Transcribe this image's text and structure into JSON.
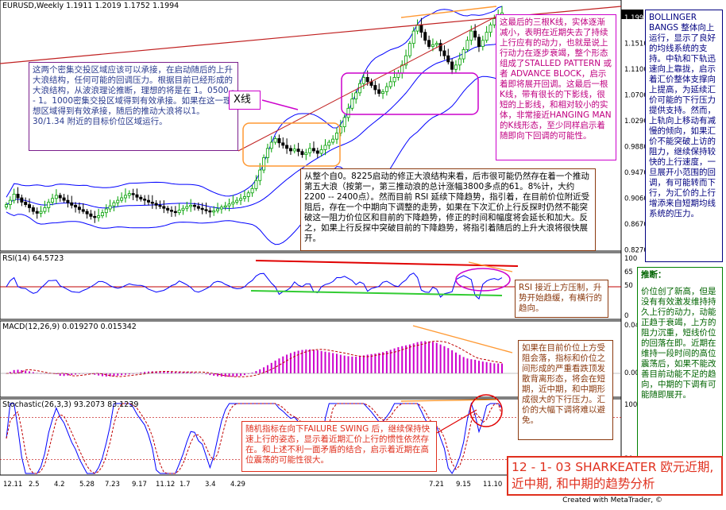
{
  "header": {
    "symbol_line": "EURUSD,Weekly  1.1911 1.2019 1.1752 1.1994",
    "rsi_line": "RSI(14) 64.5723",
    "macd_line": "MACD(12,26,9)  0.019270 0.015342",
    "stoch_line": "Stochastic(26,3,3) 93.2073 83.1239"
  },
  "price_axis": [
    "1.1994",
    "1.1510",
    "1.1100",
    "1.0700",
    "1.0290",
    "0.9880",
    "0.9470",
    "0.9060",
    "0.8670",
    "0.8270"
  ],
  "rsi_axis": [
    "100",
    "65",
    "50",
    "0"
  ],
  "macd_axis": [
    "0.0424",
    "0.00"
  ],
  "stoch_axis": [
    "100",
    "20",
    "0"
  ],
  "date_axis": [
    "12.11",
    "2.5",
    "4.2",
    "5.28",
    "7.23",
    "9.17",
    "11.12",
    "1.7",
    "3.4",
    "4.29",
    "7.21",
    "9.15",
    "11.10"
  ],
  "footer": "Created with MetaTrader, ©",
  "title": "12 - 1- 03  SHARKEATER 欧元近期, 近中期, 和中期的趋势分析",
  "x_line_label": "X线",
  "colors": {
    "up": "#00a000",
    "down": "#000000",
    "accent": "#e0301e",
    "purple": "#cc00cc",
    "orange": "#ff9933",
    "navy": "#000080",
    "green": "#008000",
    "brown": "#8b3a0f",
    "band": "#0000ff"
  },
  "notes": {
    "support_zone": "这两个密集交投区域应该可以承接，在启动随后的上升大浪结构，任何可能的回调压力。根据目前已经形成的大浪结构，从波浪理论推断，理想的将是在 1。0500 -- 1。1000密集交投区域得到有效承接。如果在这一理想区域得到有效承接，随后的推动大浪将以1。30/1.34 附近的目标价位区域运行。",
    "three_candles": "这最后的三根K线，实体逐渐减小，表明在近期失去了持续上行应有的动力，也就是说上行动力在逐步衰竭，整个形态组成了STALLED PATTERN 或者 ADVANCE BLOCK，启示着即将展开回调。这最后一根K线，带有很长的下影线，很短的上影线，和相对较小的实体，非常接近HANGING MAN 的K线形态，至少同样启示着随即向下回调的可能性。",
    "bollinger": "BOLLINGER BANGS 整体向上运行，显示了良好的均线系统的支持。中轨和下轨迅速向上靠拢，启示着汇价整体支撑向上提高，为延续汇价可能的下行压力提供支持。然而，上轨向上移动有减慢的倾向，如果汇价不能突破上访的阻力，继续保持较快的上行速度，一旦展开小范围的回调，有可能转而下行，为汇价的上行增添来自短期均线系统的压力。",
    "wave": "从整个自0。8225启动的修正大浪结构来看，后市很可能仍然存在着一个推动第五大浪（按第一，第三推动浪的总计涨幅3800多点的61。8%计，大约2200 -- 2400点）。然而目前 RSI 延续下降趋势，指引着，在目前价位附近受阻后，存在一个中期向下调整的走势，如果在下次汇价上行反探时仍然不能突破这一阻力价位区和目前的下降趋势，修正的时间和幅度将会延长和加大。反之，如果上行反探中突破目前的下降趋势，将指引着随后的上升大浪将很快展开。",
    "rsi": "RSI 接近上方压制，升势开始趋缓，有横行的趋向。",
    "macd": "如果在目前价位上方受阻会落，指标和价位之间形成的严重看跌顶发散背离形态，将会在短期，近中期，和中期形成很大的下行压力。汇价的大幅下调将难以避免。",
    "stochastic": "随机指标在向下FAILURE SWING 后，继续保持快速上行的姿态，显示着近期汇价上行的惯性依然存在。和上述不利一面矛盾的结合，启示着近期在高位震荡的可能性很大。",
    "conclusion_title": "推断：",
    "conclusion": "价位创了新高，但是没有有效激发维持持久上行的动力，动能正趋于衰竭，上方的阻力沉重，短线价位的回落在即。近期在维持一段时间的高位震荡后，如果不能改善目前动能不足的趋向，中期的下调有可能随即展开。"
  },
  "chart_data": {
    "type": "candlestick",
    "title": "EURUSD,Weekly",
    "price_range": [
      0.819,
      1.21
    ],
    "dates": [
      "12.11",
      "2.5",
      "4.2",
      "5.28",
      "7.23",
      "9.17",
      "11.12",
      "1.7",
      "3.4",
      "4.29",
      "7.21",
      "9.15",
      "11.10"
    ],
    "last_ohlc": {
      "open": 1.1911,
      "high": 1.2019,
      "low": 1.1752,
      "close": 1.1994
    },
    "close_path": [
      0.889,
      0.896,
      0.906,
      0.9,
      0.893,
      0.889,
      0.884,
      0.878,
      0.875,
      0.878,
      0.884,
      0.893,
      0.899,
      0.904,
      0.9,
      0.896,
      0.892,
      0.888,
      0.885,
      0.881,
      0.878,
      0.874,
      0.87,
      0.868,
      0.871,
      0.876,
      0.882,
      0.887,
      0.892,
      0.896,
      0.9,
      0.904,
      0.907,
      0.905,
      0.901,
      0.898,
      0.896,
      0.893,
      0.891,
      0.888,
      0.886,
      0.883,
      0.88,
      0.878,
      0.876,
      0.88,
      0.883,
      0.886,
      0.888,
      0.886,
      0.883,
      0.881,
      0.879,
      0.877,
      0.879,
      0.882,
      0.885,
      0.887,
      0.89,
      0.893,
      0.896,
      0.899,
      0.902,
      0.908,
      0.915,
      0.928,
      0.945,
      0.965,
      0.98,
      0.99,
      0.996,
      0.989,
      0.985,
      0.98,
      0.976,
      0.979,
      0.975,
      0.97,
      0.973,
      0.98,
      0.976,
      0.972,
      0.978,
      0.985,
      0.99,
      0.995,
      1.005,
      1.015,
      1.03,
      1.045,
      1.06,
      1.07,
      1.085,
      1.095,
      1.088,
      1.082,
      1.075,
      1.069,
      1.072,
      1.08,
      1.088,
      1.095,
      1.102,
      1.115,
      1.13,
      1.15,
      1.17,
      1.18,
      1.168,
      1.155,
      1.145,
      1.148,
      1.15,
      1.138,
      1.13,
      1.12,
      1.108,
      1.115,
      1.125,
      1.14,
      1.155,
      1.17,
      1.16,
      1.145,
      1.155,
      1.168,
      1.18,
      1.19,
      1.196,
      1.1994
    ],
    "rsi": {
      "value": 64.5723,
      "range": [
        0,
        100
      ],
      "levels": [
        65,
        50
      ]
    },
    "macd": {
      "main": 0.01927,
      "signal": 0.015342,
      "top": 0.0424
    },
    "stochastic": {
      "k": 93.2073,
      "d": 83.1239,
      "range": [
        0,
        100
      ]
    }
  }
}
